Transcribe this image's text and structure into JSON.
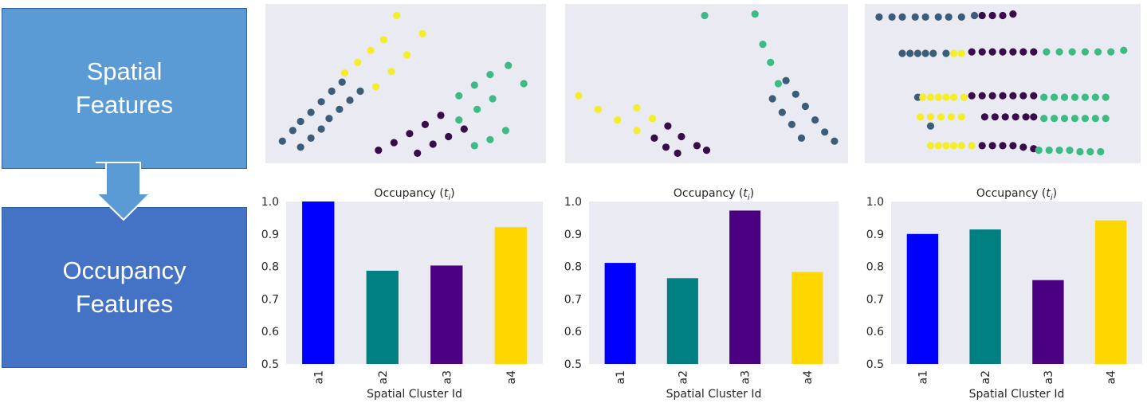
{
  "labels": {
    "spatial": [
      "Spatial",
      "Features"
    ],
    "occupancy": [
      "Occupancy",
      "Features"
    ]
  },
  "colors": {
    "a1": "#0000ff",
    "a2": "#008080",
    "a3": "#4b0082",
    "a4": "#ffd700",
    "dot_navy": "#3b5d7a",
    "dot_purple": "#3a0b4a",
    "dot_green": "#3dbb84",
    "dot_yellow": "#f5ec2a",
    "panel_bg": "#eaeaf2",
    "arrow": "#5b9bd5"
  },
  "chart_data": [
    {
      "type": "scatter",
      "title": "",
      "series": [
        {
          "name": "a1",
          "color": "dot_navy",
          "points": [
            [
              0.05,
              0.12
            ],
            [
              0.09,
              0.19
            ],
            [
              0.12,
              0.25
            ],
            [
              0.16,
              0.31
            ],
            [
              0.2,
              0.38
            ],
            [
              0.24,
              0.45
            ],
            [
              0.28,
              0.51
            ],
            [
              0.12,
              0.08
            ],
            [
              0.16,
              0.14
            ],
            [
              0.2,
              0.2
            ],
            [
              0.23,
              0.27
            ],
            [
              0.27,
              0.33
            ],
            [
              0.31,
              0.39
            ],
            [
              0.35,
              0.45
            ]
          ]
        },
        {
          "name": "a4",
          "color": "dot_yellow",
          "points": [
            [
              0.29,
              0.57
            ],
            [
              0.34,
              0.64
            ],
            [
              0.39,
              0.72
            ],
            [
              0.44,
              0.79
            ],
            [
              0.49,
              0.95
            ],
            [
              0.41,
              0.48
            ],
            [
              0.47,
              0.58
            ],
            [
              0.53,
              0.69
            ],
            [
              0.59,
              0.83
            ]
          ]
        },
        {
          "name": "a3",
          "color": "dot_purple",
          "points": [
            [
              0.42,
              0.06
            ],
            [
              0.48,
              0.11
            ],
            [
              0.54,
              0.17
            ],
            [
              0.6,
              0.23
            ],
            [
              0.66,
              0.29
            ],
            [
              0.57,
              0.04
            ],
            [
              0.63,
              0.1
            ],
            [
              0.69,
              0.15
            ],
            [
              0.75,
              0.2
            ]
          ]
        },
        {
          "name": "a2",
          "color": "dot_green",
          "points": [
            [
              0.73,
              0.42
            ],
            [
              0.79,
              0.49
            ],
            [
              0.85,
              0.56
            ],
            [
              0.92,
              0.62
            ],
            [
              0.98,
              0.5
            ],
            [
              0.73,
              0.26
            ],
            [
              0.8,
              0.33
            ],
            [
              0.86,
              0.4
            ],
            [
              0.79,
              0.09
            ],
            [
              0.85,
              0.13
            ],
            [
              0.91,
              0.19
            ]
          ]
        }
      ]
    },
    {
      "type": "scatter",
      "title": "",
      "series": [
        {
          "name": "a4",
          "color": "dot_yellow",
          "points": [
            [
              0.05,
              0.42
            ],
            [
              0.15,
              0.33
            ],
            [
              0.25,
              0.26
            ],
            [
              0.35,
              0.34
            ],
            [
              0.43,
              0.27
            ],
            [
              0.35,
              0.19
            ]
          ]
        },
        {
          "name": "a3",
          "color": "dot_purple",
          "points": [
            [
              0.51,
              0.22
            ],
            [
              0.58,
              0.15
            ],
            [
              0.66,
              0.09
            ],
            [
              0.44,
              0.14
            ],
            [
              0.5,
              0.08
            ],
            [
              0.56,
              0.04
            ],
            [
              0.71,
              0.06
            ]
          ]
        },
        {
          "name": "a2",
          "color": "dot_green",
          "points": [
            [
              0.7,
              0.95
            ],
            [
              0.96,
              0.96
            ],
            [
              1.0,
              0.76
            ],
            [
              1.04,
              0.64
            ],
            [
              1.08,
              0.5
            ]
          ]
        },
        {
          "name": "a1",
          "color": "dot_navy",
          "points": [
            [
              1.05,
              0.4
            ],
            [
              1.1,
              0.31
            ],
            [
              1.15,
              0.23
            ],
            [
              1.2,
              0.14
            ],
            [
              1.12,
              0.52
            ],
            [
              1.17,
              0.43
            ],
            [
              1.22,
              0.35
            ],
            [
              1.27,
              0.26
            ],
            [
              1.32,
              0.18
            ],
            [
              1.37,
              0.12
            ]
          ]
        }
      ]
    },
    {
      "type": "scatter",
      "title": "",
      "series": [
        {
          "name": "a1",
          "color": "dot_navy",
          "points": [
            [
              0.04,
              0.94
            ],
            [
              0.09,
              0.94
            ],
            [
              0.13,
              0.94
            ],
            [
              0.18,
              0.94
            ],
            [
              0.22,
              0.94
            ],
            [
              0.27,
              0.94
            ],
            [
              0.31,
              0.94
            ],
            [
              0.36,
              0.94
            ],
            [
              0.41,
              0.95
            ],
            [
              0.13,
              0.7
            ],
            [
              0.16,
              0.7
            ],
            [
              0.19,
              0.7
            ],
            [
              0.22,
              0.7
            ],
            [
              0.25,
              0.7
            ],
            [
              0.3,
              0.7
            ],
            [
              0.19,
              0.41
            ],
            [
              0.24,
              0.22
            ]
          ]
        },
        {
          "name": "a3",
          "color": "dot_purple",
          "points": [
            [
              0.44,
              0.95
            ],
            [
              0.48,
              0.95
            ],
            [
              0.52,
              0.95
            ],
            [
              0.56,
              0.96
            ],
            [
              0.4,
              0.71
            ],
            [
              0.44,
              0.71
            ],
            [
              0.48,
              0.71
            ],
            [
              0.52,
              0.71
            ],
            [
              0.56,
              0.71
            ],
            [
              0.6,
              0.71
            ],
            [
              0.64,
              0.71
            ],
            [
              0.4,
              0.42
            ],
            [
              0.44,
              0.42
            ],
            [
              0.48,
              0.42
            ],
            [
              0.52,
              0.42
            ],
            [
              0.56,
              0.42
            ],
            [
              0.6,
              0.42
            ],
            [
              0.64,
              0.42
            ],
            [
              0.45,
              0.28
            ],
            [
              0.49,
              0.28
            ],
            [
              0.53,
              0.28
            ],
            [
              0.57,
              0.28
            ],
            [
              0.61,
              0.28
            ],
            [
              0.64,
              0.28
            ],
            [
              0.44,
              0.09
            ],
            [
              0.48,
              0.09
            ],
            [
              0.52,
              0.09
            ],
            [
              0.56,
              0.09
            ],
            [
              0.6,
              0.08
            ],
            [
              0.64,
              0.07
            ]
          ]
        },
        {
          "name": "a4",
          "color": "dot_yellow",
          "points": [
            [
              0.33,
              0.7
            ],
            [
              0.36,
              0.7
            ],
            [
              0.21,
              0.41
            ],
            [
              0.24,
              0.41
            ],
            [
              0.27,
              0.41
            ],
            [
              0.3,
              0.41
            ],
            [
              0.33,
              0.41
            ],
            [
              0.37,
              0.41
            ],
            [
              0.2,
              0.28
            ],
            [
              0.24,
              0.28
            ],
            [
              0.28,
              0.28
            ],
            [
              0.32,
              0.28
            ],
            [
              0.36,
              0.28
            ],
            [
              0.24,
              0.09
            ],
            [
              0.27,
              0.09
            ],
            [
              0.3,
              0.09
            ],
            [
              0.33,
              0.09
            ],
            [
              0.36,
              0.09
            ],
            [
              0.4,
              0.09
            ]
          ]
        },
        {
          "name": "a2",
          "color": "dot_green",
          "points": [
            [
              0.69,
              0.71
            ],
            [
              0.74,
              0.71
            ],
            [
              0.79,
              0.71
            ],
            [
              0.84,
              0.71
            ],
            [
              0.89,
              0.71
            ],
            [
              0.94,
              0.71
            ],
            [
              0.99,
              0.72
            ],
            [
              0.68,
              0.41
            ],
            [
              0.72,
              0.41
            ],
            [
              0.76,
              0.41
            ],
            [
              0.8,
              0.41
            ],
            [
              0.84,
              0.41
            ],
            [
              0.88,
              0.41
            ],
            [
              0.92,
              0.41
            ],
            [
              0.68,
              0.27
            ],
            [
              0.72,
              0.27
            ],
            [
              0.76,
              0.27
            ],
            [
              0.8,
              0.27
            ],
            [
              0.84,
              0.27
            ],
            [
              0.88,
              0.27
            ],
            [
              0.92,
              0.27
            ],
            [
              0.66,
              0.06
            ],
            [
              0.7,
              0.06
            ],
            [
              0.74,
              0.06
            ],
            [
              0.78,
              0.06
            ],
            [
              0.82,
              0.05
            ],
            [
              0.86,
              0.05
            ],
            [
              0.9,
              0.05
            ]
          ]
        }
      ]
    },
    {
      "type": "bar",
      "title": "Occupancy (t_i)",
      "categories": [
        "a1",
        "a2",
        "a3",
        "a4"
      ],
      "values": [
        1.0,
        0.787,
        0.803,
        0.921
      ],
      "xlabel": "Spatial Cluster Id",
      "ylabel": "",
      "ylim": [
        0.5,
        1.0
      ],
      "yticks": [
        "0.5",
        "0.6",
        "0.7",
        "0.8",
        "0.9",
        "1.0"
      ]
    },
    {
      "type": "bar",
      "title": "Occupancy (t_i)",
      "categories": [
        "a1",
        "a2",
        "a3",
        "a4"
      ],
      "values": [
        0.811,
        0.764,
        0.972,
        0.783
      ],
      "xlabel": "Spatial Cluster Id",
      "ylabel": "",
      "ylim": [
        0.5,
        1.0
      ],
      "yticks": [
        "0.5",
        "0.6",
        "0.7",
        "0.8",
        "0.9",
        "1.0"
      ]
    },
    {
      "type": "bar",
      "title": "Occupancy (t_i)",
      "categories": [
        "a1",
        "a2",
        "a3",
        "a4"
      ],
      "values": [
        0.9,
        0.914,
        0.758,
        0.942
      ],
      "xlabel": "Spatial Cluster Id",
      "ylabel": "",
      "ylim": [
        0.5,
        1.0
      ],
      "yticks": [
        "0.5",
        "0.6",
        "0.7",
        "0.8",
        "0.9",
        "1.0"
      ]
    }
  ]
}
